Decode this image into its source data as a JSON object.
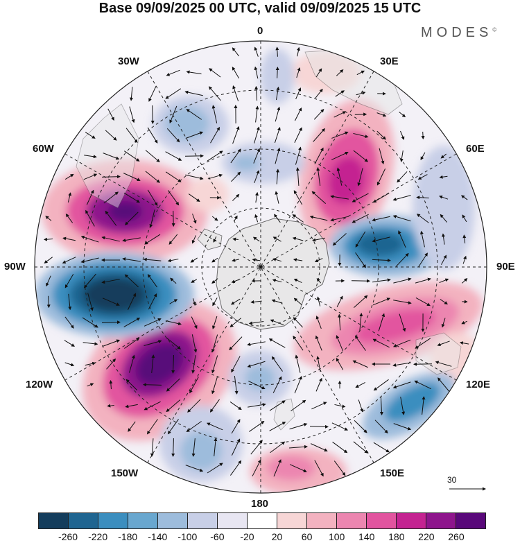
{
  "title": "Base 09/09/2025 00 UTC, valid 09/09/2025 15 UTC",
  "brand": "MODES",
  "brand_mark": "©",
  "longitude_labels": {
    "lon_0": "0",
    "lon_30e": "30E",
    "lon_60e": "60E",
    "lon_90e": "90E",
    "lon_120e": "120E",
    "lon_150e": "150E",
    "lon_180": "180",
    "lon_150w": "150W",
    "lon_120w": "120W",
    "lon_90w": "90W",
    "lon_60w": "60W",
    "lon_30w": "30W"
  },
  "reference_vector": "30",
  "colorbar": {
    "colors": [
      "#143d5c",
      "#1f6591",
      "#3b8ebf",
      "#69a7cf",
      "#9dbcdc",
      "#c8cfe7",
      "#e8e6f2",
      "#ffffff",
      "#f7d6d6",
      "#f3b2c0",
      "#ec86b0",
      "#e2549f",
      "#c42391",
      "#8e158c",
      "#59087a"
    ],
    "tick_labels": [
      "-260",
      "-220",
      "-180",
      "-140",
      "-100",
      "-60",
      "-20",
      "20",
      "60",
      "100",
      "140",
      "180",
      "220",
      "260"
    ]
  },
  "colors": {
    "land": "#e6e6e6",
    "coast": "#555555",
    "grid": "#222222",
    "arrow": "#111111"
  }
}
